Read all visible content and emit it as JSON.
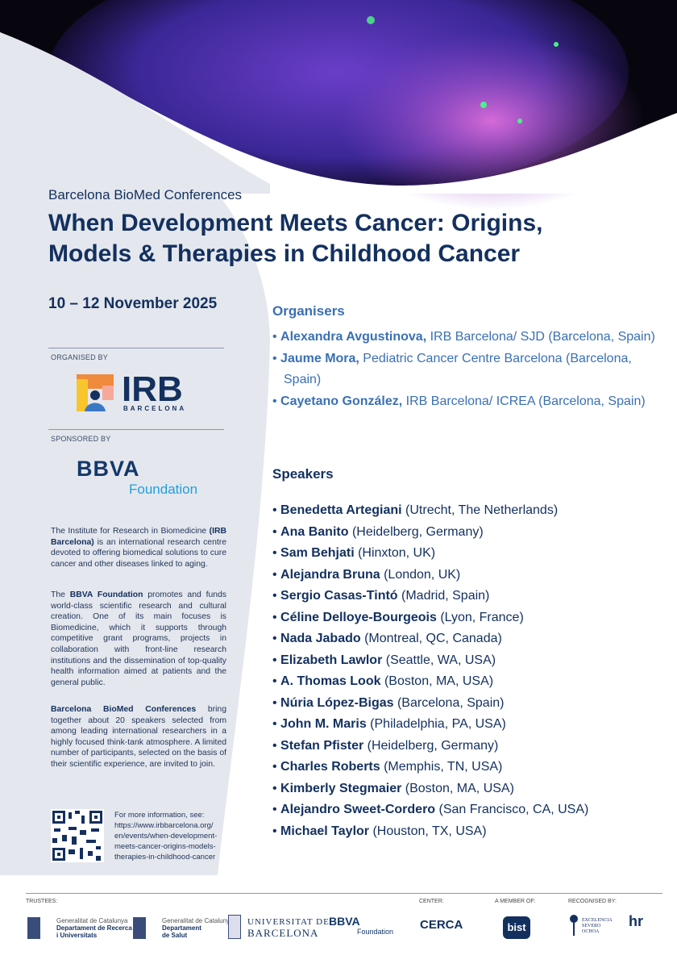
{
  "header": {
    "series": "Barcelona BioMed Conferences",
    "title_line1": "When Development Meets Cancer: Origins,",
    "title_line2": "Models & Therapies in Childhood Cancer",
    "dates": "10 – 12 November 2025"
  },
  "left": {
    "organised_by": "ORGANISED BY",
    "irb_logo": {
      "name": "IRB",
      "sub": "BARCELONA"
    },
    "sponsored_by": "SPONSORED BY",
    "bbva_logo": {
      "name": "BBVA",
      "sub": "Foundation"
    },
    "para1": {
      "a": "The Institute for Research in Biomedicine ",
      "b": "(IRB Barcelona)",
      "c": " is an international research centre devoted to offering biomedical solutions to cure cancer and other diseases linked to aging."
    },
    "para2": {
      "a": "The ",
      "b": "BBVA Foundation",
      "c": " promotes and funds world-class scientific research and cultural creation. One of its main focuses is Biomedicine, which it supports through competitive grant programs, projects in collaboration with front-line research institutions and the dissemination of top-quality health information aimed at patients and the general public."
    },
    "para3": {
      "b": "Barcelona BioMed Conferences",
      "c": " bring together about 20 speakers selected from among leading international researchers in a highly focused think-tank atmosphere. A limited number of participants, selected on the basis of their scientific experience, are invited to join."
    },
    "more_info": "For more information, see:",
    "url_lines": [
      "https://www.irbbarcelona.org/",
      "en/events/when-development-",
      "meets-cancer-origins-models-",
      "therapies-in-childhood-cancer"
    ]
  },
  "organisers": {
    "heading": "Organisers",
    "items": [
      {
        "name": "Alexandra Avgustinova,",
        "affil": " IRB Barcelona/ SJD (Barcelona, Spain)"
      },
      {
        "name": "Jaume Mora,",
        "affil": " Pediatric Cancer Centre Barcelona (Barcelona, Spain)"
      },
      {
        "name": "Cayetano González,",
        "affil": " IRB Barcelona/ ICREA (Barcelona, Spain)"
      }
    ]
  },
  "speakers": {
    "heading": "Speakers",
    "items": [
      {
        "name": "Benedetta Artegiani",
        "loc": " (Utrecht, The Netherlands)"
      },
      {
        "name": "Ana Banito",
        "loc": " (Heidelberg, Germany)"
      },
      {
        "name": "Sam Behjati",
        "loc": " (Hinxton, UK)"
      },
      {
        "name": "Alejandra Bruna",
        "loc": " (London, UK)"
      },
      {
        "name": "Sergio Casas-Tintó",
        "loc": " (Madrid, Spain)"
      },
      {
        "name": "Céline Delloye-Bourgeois",
        "loc": " (Lyon, France)"
      },
      {
        "name": "Nada Jabado",
        "loc": " (Montreal, QC, Canada)"
      },
      {
        "name": "Elizabeth Lawlor",
        "loc": " (Seattle, WA, USA)"
      },
      {
        "name": "A. Thomas Look",
        "loc": " (Boston, MA, USA)"
      },
      {
        "name": "Núria López-Bigas",
        "loc": " (Barcelona, Spain)"
      },
      {
        "name": "John M. Maris",
        "loc": " (Philadelphia, PA, USA)"
      },
      {
        "name": "Stefan Pfister",
        "loc": " (Heidelberg, Germany)"
      },
      {
        "name": "Charles Roberts",
        "loc": " (Memphis, TN, USA)"
      },
      {
        "name": "Kimberly Stegmaier",
        "loc": " (Boston, MA, USA)"
      },
      {
        "name": "Alejandro Sweet-Cordero",
        "loc": " (San Francisco, CA, USA)"
      },
      {
        "name": "Michael Taylor",
        "loc": " (Houston, TX, USA)"
      }
    ]
  },
  "footer": {
    "trustees": "TRUSTEES:",
    "center": "CENTER:",
    "member": "A MEMBER OF:",
    "recognised": "RECOGNISED BY:",
    "logos": {
      "gen1": [
        "Generalitat de Catalunya",
        "Departament de Recerca",
        "i Universitats"
      ],
      "gen2": [
        "Generalitat de Catalunya",
        "Departament",
        "de Salut"
      ],
      "ub": [
        "UNIVERSITAT DE",
        "BARCELONA"
      ],
      "bbva": [
        "BBVA",
        "Foundation"
      ],
      "cerca": "CERCA",
      "bist": "bist",
      "severo": [
        "EXCELENCIA",
        "SEVERO",
        "OCHOA"
      ],
      "hr": "hr"
    }
  },
  "colors": {
    "navy": "#13305f",
    "accent": "#3a70b4",
    "panel": "#e4e7ed"
  }
}
